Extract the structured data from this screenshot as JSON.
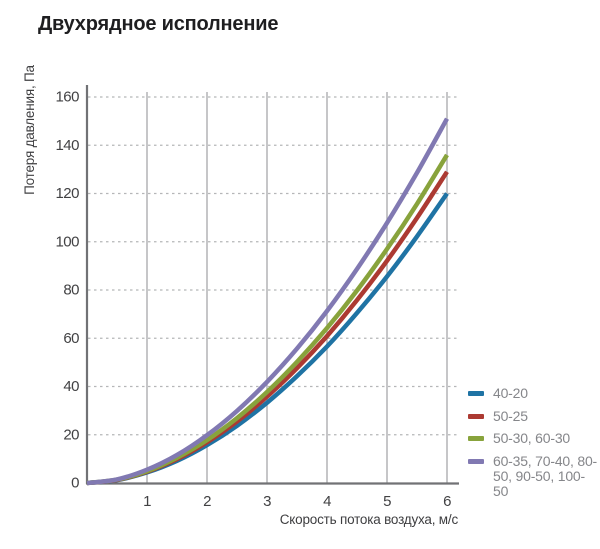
{
  "title": "Двухрядное исполнение",
  "palette": {
    "background": "#ffffff",
    "title_text": "#1e1e20",
    "axis": "#717275",
    "grid": "#a7a8aa",
    "grid_dashed": "#b5b6b8",
    "tick_text": "#414143",
    "label_text": "#3e3e40",
    "legend_text": "#85868a"
  },
  "chart_data": {
    "type": "line",
    "title": "Двухрядное исполнение",
    "xlabel": "Скорость потока воздуха, м/с",
    "ylabel": "Потеря давления, Па",
    "xlim": [
      0,
      6
    ],
    "ylim": [
      0,
      160
    ],
    "x_ticks": [
      1,
      2,
      3,
      4,
      5,
      6
    ],
    "y_ticks": [
      0,
      20,
      40,
      60,
      80,
      100,
      120,
      140,
      160
    ],
    "grid": "vertical-solid, horizontal-dashed",
    "legend_position": "right-bottom",
    "x": [
      0,
      0.5,
      1,
      1.5,
      2,
      2.5,
      3,
      3.5,
      4,
      4.5,
      5,
      5.5,
      6
    ],
    "series": [
      {
        "name": "40-20",
        "color": "#1f73a4",
        "values": [
          0,
          1.2,
          4.4,
          9.2,
          15.7,
          23.7,
          33.3,
          44.3,
          56.6,
          70.5,
          85.6,
          102.2,
          120
        ]
      },
      {
        "name": "50-25",
        "color": "#ac3a32",
        "values": [
          0,
          1.3,
          4.7,
          9.9,
          16.9,
          25.5,
          35.8,
          47.6,
          60.9,
          75.8,
          92.1,
          109.9,
          129
        ]
      },
      {
        "name": "50-30, 60-30",
        "color": "#88a33c",
        "values": [
          0,
          1.4,
          4.9,
          10.5,
          17.8,
          26.9,
          37.7,
          50.2,
          64.2,
          79.8,
          97,
          115.7,
          136
        ]
      },
      {
        "name": "60-35, 70-40, 80-50, 90-50, 100-50",
        "color": "#8179b2",
        "values": [
          0,
          1.5,
          5.5,
          11.6,
          19.8,
          29.9,
          41.9,
          55.7,
          71.3,
          88.7,
          107.8,
          128.6,
          151
        ]
      }
    ]
  }
}
